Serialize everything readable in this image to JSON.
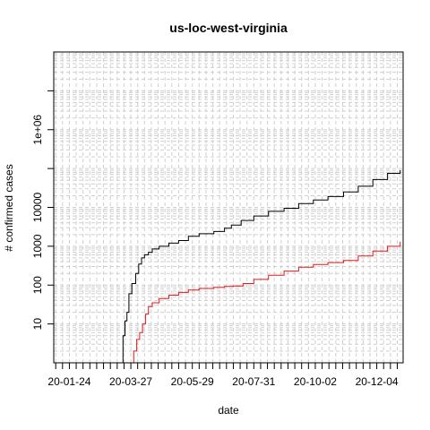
{
  "chart_data": {
    "type": "line",
    "title": "us-loc-west-virginia",
    "xlabel": "date",
    "ylabel": "# confirmed cases",
    "x_scale": "date",
    "y_scale": "log10",
    "xlim": [
      "2020-01-08",
      "2020-12-31"
    ],
    "ylim": [
      1,
      100000000
    ],
    "x_tick_labels": [
      {
        "date": "2020-01-24",
        "label": "20-01-24"
      },
      {
        "date": "2020-03-27",
        "label": "20-03-27"
      },
      {
        "date": "2020-05-29",
        "label": "20-05-29"
      },
      {
        "date": "2020-07-31",
        "label": "20-07-31"
      },
      {
        "date": "2020-10-02",
        "label": "20-10-02"
      },
      {
        "date": "2020-12-04",
        "label": "20-12-04"
      }
    ],
    "y_ticks": [
      {
        "value": 10,
        "label": "10"
      },
      {
        "value": 100,
        "label": "100"
      },
      {
        "value": 1000,
        "label": "1000"
      },
      {
        "value": 10000,
        "label": "10000"
      },
      {
        "value": 1000000,
        "label": "1e+06"
      }
    ],
    "y_minor_ticks": [
      100000,
      10000000
    ],
    "grid": true,
    "legend": "none",
    "series": [
      {
        "color": "#000000",
        "points": [
          [
            "2020-03-17",
            1
          ],
          [
            "2020-03-19",
            5
          ],
          [
            "2020-03-21",
            12
          ],
          [
            "2020-03-23",
            20
          ],
          [
            "2020-03-25",
            60
          ],
          [
            "2020-03-28",
            110
          ],
          [
            "2020-04-01",
            200
          ],
          [
            "2020-04-04",
            350
          ],
          [
            "2020-04-07",
            500
          ],
          [
            "2020-04-10",
            600
          ],
          [
            "2020-04-14",
            700
          ],
          [
            "2020-04-18",
            850
          ],
          [
            "2020-04-25",
            1000
          ],
          [
            "2020-05-05",
            1200
          ],
          [
            "2020-05-15",
            1400
          ],
          [
            "2020-05-25",
            1800
          ],
          [
            "2020-06-05",
            2100
          ],
          [
            "2020-06-20",
            2400
          ],
          [
            "2020-07-01",
            2900
          ],
          [
            "2020-07-08",
            3500
          ],
          [
            "2020-07-18",
            4600
          ],
          [
            "2020-07-31",
            6000
          ],
          [
            "2020-08-15",
            7900
          ],
          [
            "2020-08-31",
            9500
          ],
          [
            "2020-09-15",
            12500
          ],
          [
            "2020-09-30",
            15500
          ],
          [
            "2020-10-15",
            19000
          ],
          [
            "2020-10-31",
            25000
          ],
          [
            "2020-11-15",
            35000
          ],
          [
            "2020-11-30",
            52000
          ],
          [
            "2020-12-15",
            75000
          ],
          [
            "2020-12-28",
            90000
          ]
        ]
      },
      {
        "color": "#e41a1c",
        "points": [
          [
            "2020-03-28",
            1
          ],
          [
            "2020-03-30",
            2
          ],
          [
            "2020-04-02",
            4
          ],
          [
            "2020-04-05",
            6
          ],
          [
            "2020-04-08",
            10
          ],
          [
            "2020-04-11",
            18
          ],
          [
            "2020-04-14",
            28
          ],
          [
            "2020-04-18",
            35
          ],
          [
            "2020-04-25",
            45
          ],
          [
            "2020-05-05",
            55
          ],
          [
            "2020-05-15",
            65
          ],
          [
            "2020-05-25",
            75
          ],
          [
            "2020-06-05",
            82
          ],
          [
            "2020-06-20",
            88
          ],
          [
            "2020-07-01",
            92
          ],
          [
            "2020-07-10",
            95
          ],
          [
            "2020-07-20",
            110
          ],
          [
            "2020-07-31",
            140
          ],
          [
            "2020-08-15",
            180
          ],
          [
            "2020-08-31",
            230
          ],
          [
            "2020-09-15",
            290
          ],
          [
            "2020-09-30",
            340
          ],
          [
            "2020-10-15",
            380
          ],
          [
            "2020-10-31",
            430
          ],
          [
            "2020-11-15",
            560
          ],
          [
            "2020-11-30",
            750
          ],
          [
            "2020-12-15",
            1000
          ],
          [
            "2020-12-28",
            1300
          ]
        ]
      }
    ]
  }
}
